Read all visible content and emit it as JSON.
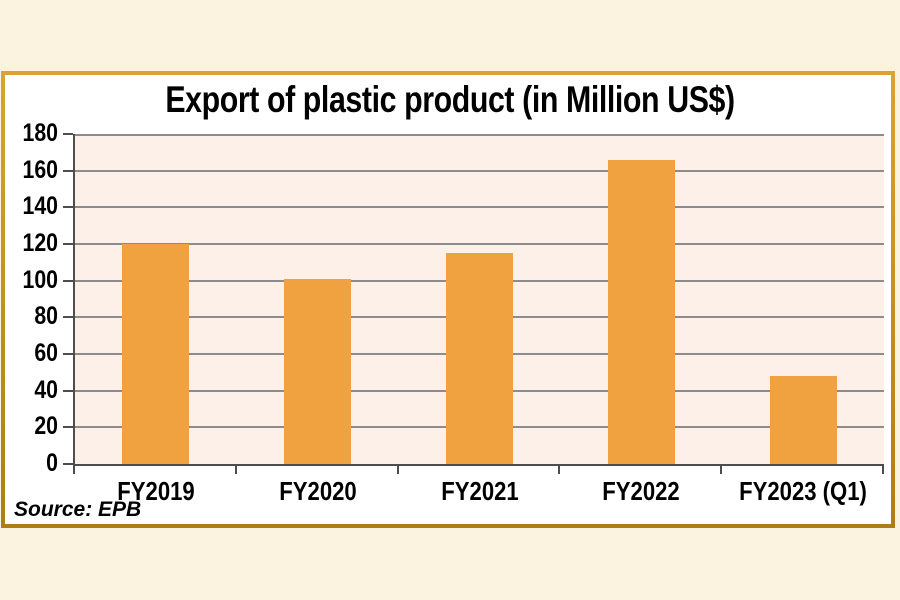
{
  "source_label": "Source: EPB",
  "colors": {
    "bar": "#F0A240",
    "panel_border_gold": "#C08A1E",
    "outer_background": "#FCF2E0",
    "plot_background": "#FCF0E9",
    "gridline": "#8C8C8C",
    "axis": "#4D4D4D",
    "text": "#000000"
  },
  "chart_data": {
    "type": "bar",
    "title": "Export of plastic product (in Million US$)",
    "categories": [
      "FY2019",
      "FY2020",
      "FY2021",
      "FY2022",
      "FY2023 (Q1)"
    ],
    "values": [
      120,
      101,
      115,
      166,
      48
    ],
    "xlabel": "",
    "ylabel": "",
    "ylim": [
      0,
      180
    ],
    "y_ticks": [
      0,
      20,
      40,
      60,
      80,
      100,
      120,
      140,
      160,
      180
    ],
    "grid": true,
    "legend": false,
    "source": "Source: EPB"
  }
}
